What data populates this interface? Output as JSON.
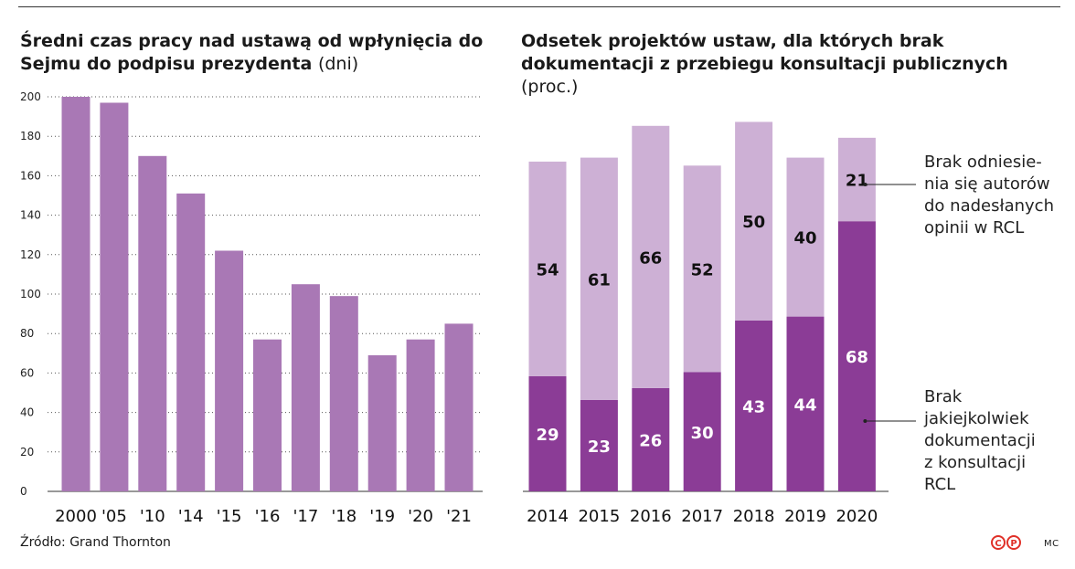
{
  "chart_data": [
    {
      "type": "bar",
      "title": "Średni czas pracy nad ustawą od wpłynięcia do Sejmu do podpisu prezydenta",
      "title_unit": "(dni)",
      "categories": [
        "2000",
        "'05",
        "'10",
        "'14",
        "'15",
        "'16",
        "'17",
        "'18",
        "'19",
        "'20",
        "'21"
      ],
      "values": [
        200,
        197,
        170,
        151,
        122,
        77,
        105,
        99,
        69,
        77,
        85
      ],
      "ylim": [
        0,
        200
      ],
      "yticks": [
        "0",
        "20",
        "40",
        "60",
        "80",
        "100",
        "120",
        "140",
        "160",
        "180",
        "200"
      ],
      "grid": true,
      "colors": {
        "bar": "#a978b5"
      }
    },
    {
      "type": "bar",
      "stacked": true,
      "title": "Odsetek projektów ustaw, dla których brak dokumentacji z przebiegu konsultacji publicznych",
      "title_unit": "(proc.)",
      "categories": [
        "2014",
        "2015",
        "2016",
        "2017",
        "2018",
        "2019",
        "2020"
      ],
      "series": [
        {
          "name": "Brak jakiejkolwiek dokumentacji z konsultacji RCL",
          "values": [
            29,
            23,
            26,
            30,
            43,
            44,
            68
          ],
          "color": "#8b3c96",
          "label_color": "#ffffff"
        },
        {
          "name": "Brak odniesienia się autorów do nadesłanych opinii w RCL",
          "values": [
            54,
            61,
            66,
            52,
            50,
            40,
            21
          ],
          "color": "#cdb0d5",
          "label_color": "#111111"
        }
      ],
      "value_labels": [
        [
          "29",
          "23",
          "26",
          "30",
          "43",
          "44",
          "68"
        ],
        [
          "54",
          "61",
          "66",
          "52",
          "50",
          "40",
          "21"
        ]
      ],
      "legend": [
        [
          "Brak odniesie-",
          "nia się autorów",
          "do nadesłanych",
          "opinii w RCL"
        ],
        [
          "Brak",
          "jakiejkolwiek",
          "dokumentacji",
          "z konsultacji",
          "RCL"
        ]
      ],
      "legend_placement": "right"
    }
  ],
  "titles": {
    "left_main": "Średni czas pracy nad ustawą od wpłynięcia do Sejmu do podpisu prezydenta",
    "left_unit": "(dni)",
    "right_main": "Odsetek projektów ustaw, dla których brak dokumentacji z przebiegu konsultacji publicznych",
    "right_unit": "(proc.)"
  },
  "footer": {
    "source": "Źródło: Grand Thornton",
    "logo_letters": [
      "C",
      "P"
    ],
    "credit": "MC"
  },
  "logo_color": "#e03028"
}
